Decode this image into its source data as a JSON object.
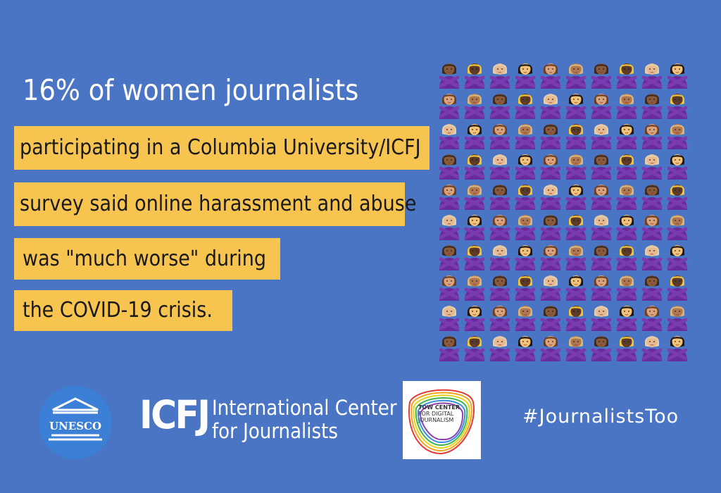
{
  "headline": "16% of women journalists",
  "body_lines": [
    "participating in a Columbia University/ICFJ",
    "survey said online harassment and abuse",
    "was \"much worse\" during",
    "the COVID-19 crisis."
  ],
  "emoji_grid": {
    "icon": "person-gesturing-no-icon",
    "columns": 10,
    "rows": 10,
    "count": 100
  },
  "logos": {
    "unesco": "UNESCO",
    "icfj_mark": "ICFJ",
    "icfj_name_line1": "International Center",
    "icfj_name_line2": "for Journalists",
    "tow_line1": "TOW CENTER",
    "tow_line2": "FOR DIGITAL",
    "tow_line3": "JOURNALISM"
  },
  "hashtag": "#JournalistsToo",
  "colors": {
    "background": "#4a74c4",
    "highlight": "#f8c450",
    "shirt": "#6a2b9a",
    "text_light": "#ffffff"
  }
}
